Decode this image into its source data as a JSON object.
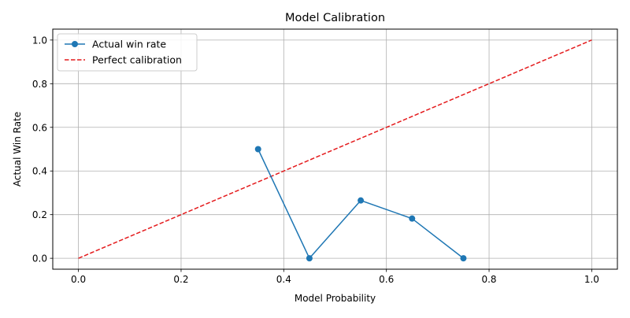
{
  "chart_data": {
    "type": "line",
    "title": "Model Calibration",
    "xlabel": "Model Probability",
    "ylabel": "Actual Win Rate",
    "xlim": [
      -0.05,
      1.05
    ],
    "ylim": [
      -0.05,
      1.05
    ],
    "x_ticks": [
      0.0,
      0.2,
      0.4,
      0.6,
      0.8,
      1.0
    ],
    "x_tick_labels": [
      "0.0",
      "0.2",
      "0.4",
      "0.6",
      "0.8",
      "1.0"
    ],
    "y_ticks": [
      0.0,
      0.2,
      0.4,
      0.6,
      0.8,
      1.0
    ],
    "y_tick_labels": [
      "0.0",
      "0.2",
      "0.4",
      "0.6",
      "0.8",
      "1.0"
    ],
    "grid": true,
    "legend_position": "top-left",
    "series": [
      {
        "name": "Actual win rate",
        "style": "solid",
        "marker": "circle",
        "color": "#1f77b4",
        "x": [
          0.35,
          0.45,
          0.55,
          0.65,
          0.75
        ],
        "y": [
          0.5,
          0.0,
          0.265,
          0.182,
          0.0
        ]
      },
      {
        "name": "Perfect calibration",
        "style": "dashed",
        "marker": "none",
        "color": "#e41a1c",
        "x": [
          0.0,
          1.0
        ],
        "y": [
          0.0,
          1.0
        ]
      }
    ]
  }
}
